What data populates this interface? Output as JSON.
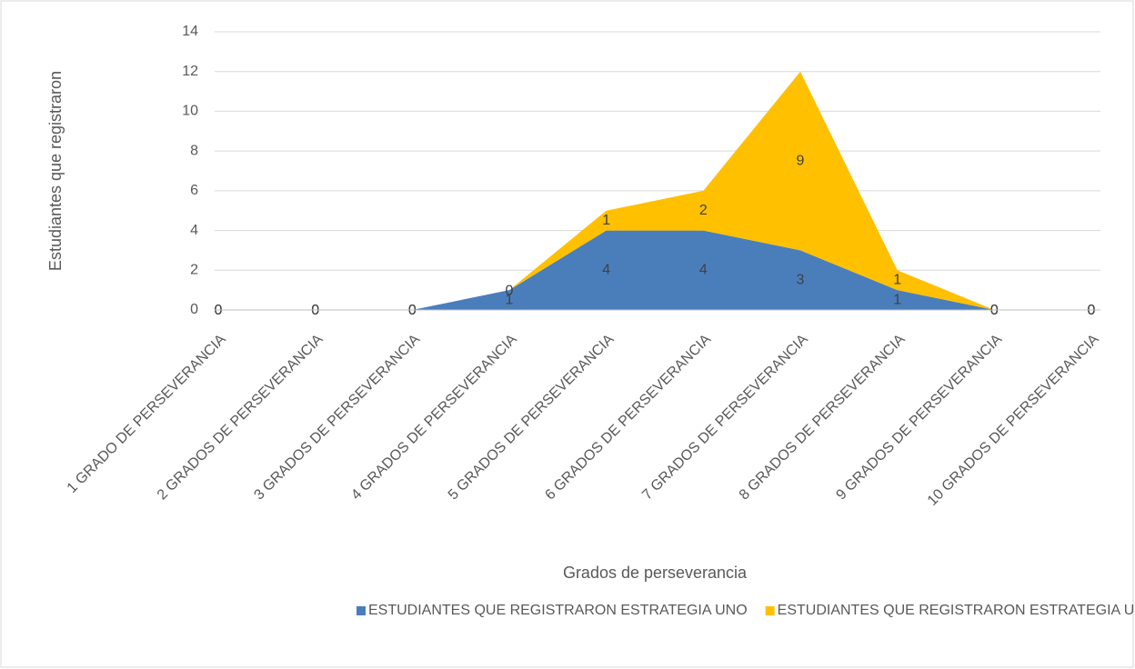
{
  "chart_data": {
    "type": "stacked_area",
    "x_label": "Grados  de  perseverancia",
    "y_label": "Estudiantes  que  registraron",
    "categories": [
      "1 GRADO DE PERSEVERANCIA",
      "2 GRADOS  DE PERSEVERANCIA",
      "3 GRADOS  DE PERSEVERANCIA",
      "4 GRADOS  DE PERSEVERANCIA",
      "5 GRADOS  DE PERSEVERANCIA",
      "6  GRADOS  DE PERSEVERANCIA",
      "7  GRADOS  DE PERSEVERANCIA",
      "8  GRADOS  DE PERSEVERANCIA",
      "9 GRADOS  DE PERSEVERANCIA",
      "10  GRADOS  DE PERSEVERANCIA"
    ],
    "series": [
      {
        "name": "ESTUDIANTES  QUE REGISTRARON ESTRATEGIA UNO",
        "color": "#4a7ebb",
        "values": [
          0,
          0,
          0,
          1,
          4,
          4,
          3,
          1,
          0,
          0
        ]
      },
      {
        "name": "ESTUDIANTES  QUE REGISTRARON ESTRATEGIA UNO",
        "color": "#ffc000",
        "values": [
          0,
          0,
          0,
          0,
          1,
          2,
          9,
          1,
          0,
          0
        ]
      }
    ],
    "ylim": [
      0,
      14
    ],
    "yticks": [
      0,
      2,
      4,
      6,
      8,
      10,
      12,
      14
    ],
    "grid": true,
    "legend": "bottom"
  }
}
